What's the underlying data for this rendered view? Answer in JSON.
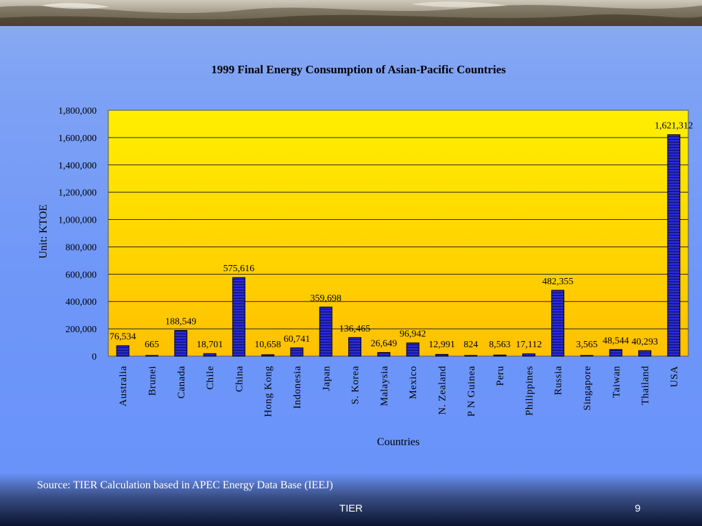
{
  "footer": {
    "source": "Source: TIER Calculation based in APEC Energy Data Base (IEEJ)",
    "center_label": "TIER",
    "page_number": "9"
  },
  "colors": {
    "bar_fill": "#2a2ad0",
    "bar_stripe": "#0a0a66",
    "plot_top": "#ffef00",
    "plot_bottom": "#ffc000",
    "slide_background": "#6a93fa"
  },
  "chart_data": {
    "type": "bar",
    "title": "1999 Final Energy Consumption of Asian-Pacific Countries",
    "xlabel": "Countries",
    "ylabel": "Unit: KTOE",
    "ylim": [
      0,
      1800000
    ],
    "y_ticks": [
      0,
      200000,
      400000,
      600000,
      800000,
      1000000,
      1200000,
      1400000,
      1600000,
      1800000
    ],
    "y_tick_labels": [
      "0",
      "200,000",
      "400,000",
      "600,000",
      "800,000",
      "1,000,000",
      "1,200,000",
      "1,400,000",
      "1,600,000",
      "1,800,000"
    ],
    "grid": true,
    "categories": [
      "Australia",
      "Brunei",
      "Canada",
      "Chile",
      "China",
      "Hong Kong",
      "Indonesia",
      "Japan",
      "S. Korea",
      "Malaysia",
      "Mexico",
      "N. Zealand",
      "P N Guinea",
      "Peru",
      "Philippines",
      "Russia",
      "Singapore",
      "Taiwan",
      "Thailand",
      "USA"
    ],
    "values": [
      76534,
      665,
      188549,
      18701,
      575616,
      10658,
      60741,
      359698,
      136465,
      26649,
      96942,
      12991,
      824,
      8563,
      17112,
      482355,
      3565,
      48544,
      40293,
      1621312
    ],
    "data_labels": [
      "76,534",
      "665",
      "188,549",
      "18,701",
      "575,616",
      "10,658",
      "60,741",
      "359,698",
      "136,465",
      "26,649",
      "96,942",
      "12,991",
      "824",
      "8,563",
      "17,112",
      "482,355",
      "3,565",
      "48,544",
      "40,293",
      "1,621,312"
    ]
  }
}
